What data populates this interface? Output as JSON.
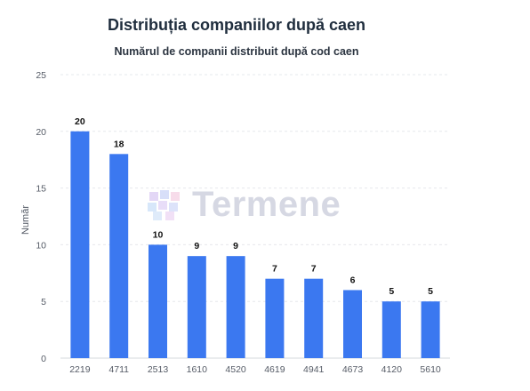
{
  "chart_data": {
    "type": "bar",
    "title": "Distribuția companiilor după caen",
    "subtitle": "Numărul de companii distribuit după cod caen",
    "xlabel": "",
    "ylabel": "Număr",
    "ylim": [
      0,
      25
    ],
    "yticks": [
      0,
      5,
      10,
      15,
      20,
      25
    ],
    "grid": true,
    "categories": [
      "2219",
      "4711",
      "2513",
      "1610",
      "4520",
      "4619",
      "4941",
      "4673",
      "4120",
      "5610"
    ],
    "values": [
      20,
      18,
      10,
      9,
      9,
      7,
      7,
      6,
      5,
      5
    ],
    "bar_color": "#3b78f0",
    "data_labels": true
  },
  "watermark": {
    "text": "Termene",
    "icon": "termene-logo-icon"
  }
}
